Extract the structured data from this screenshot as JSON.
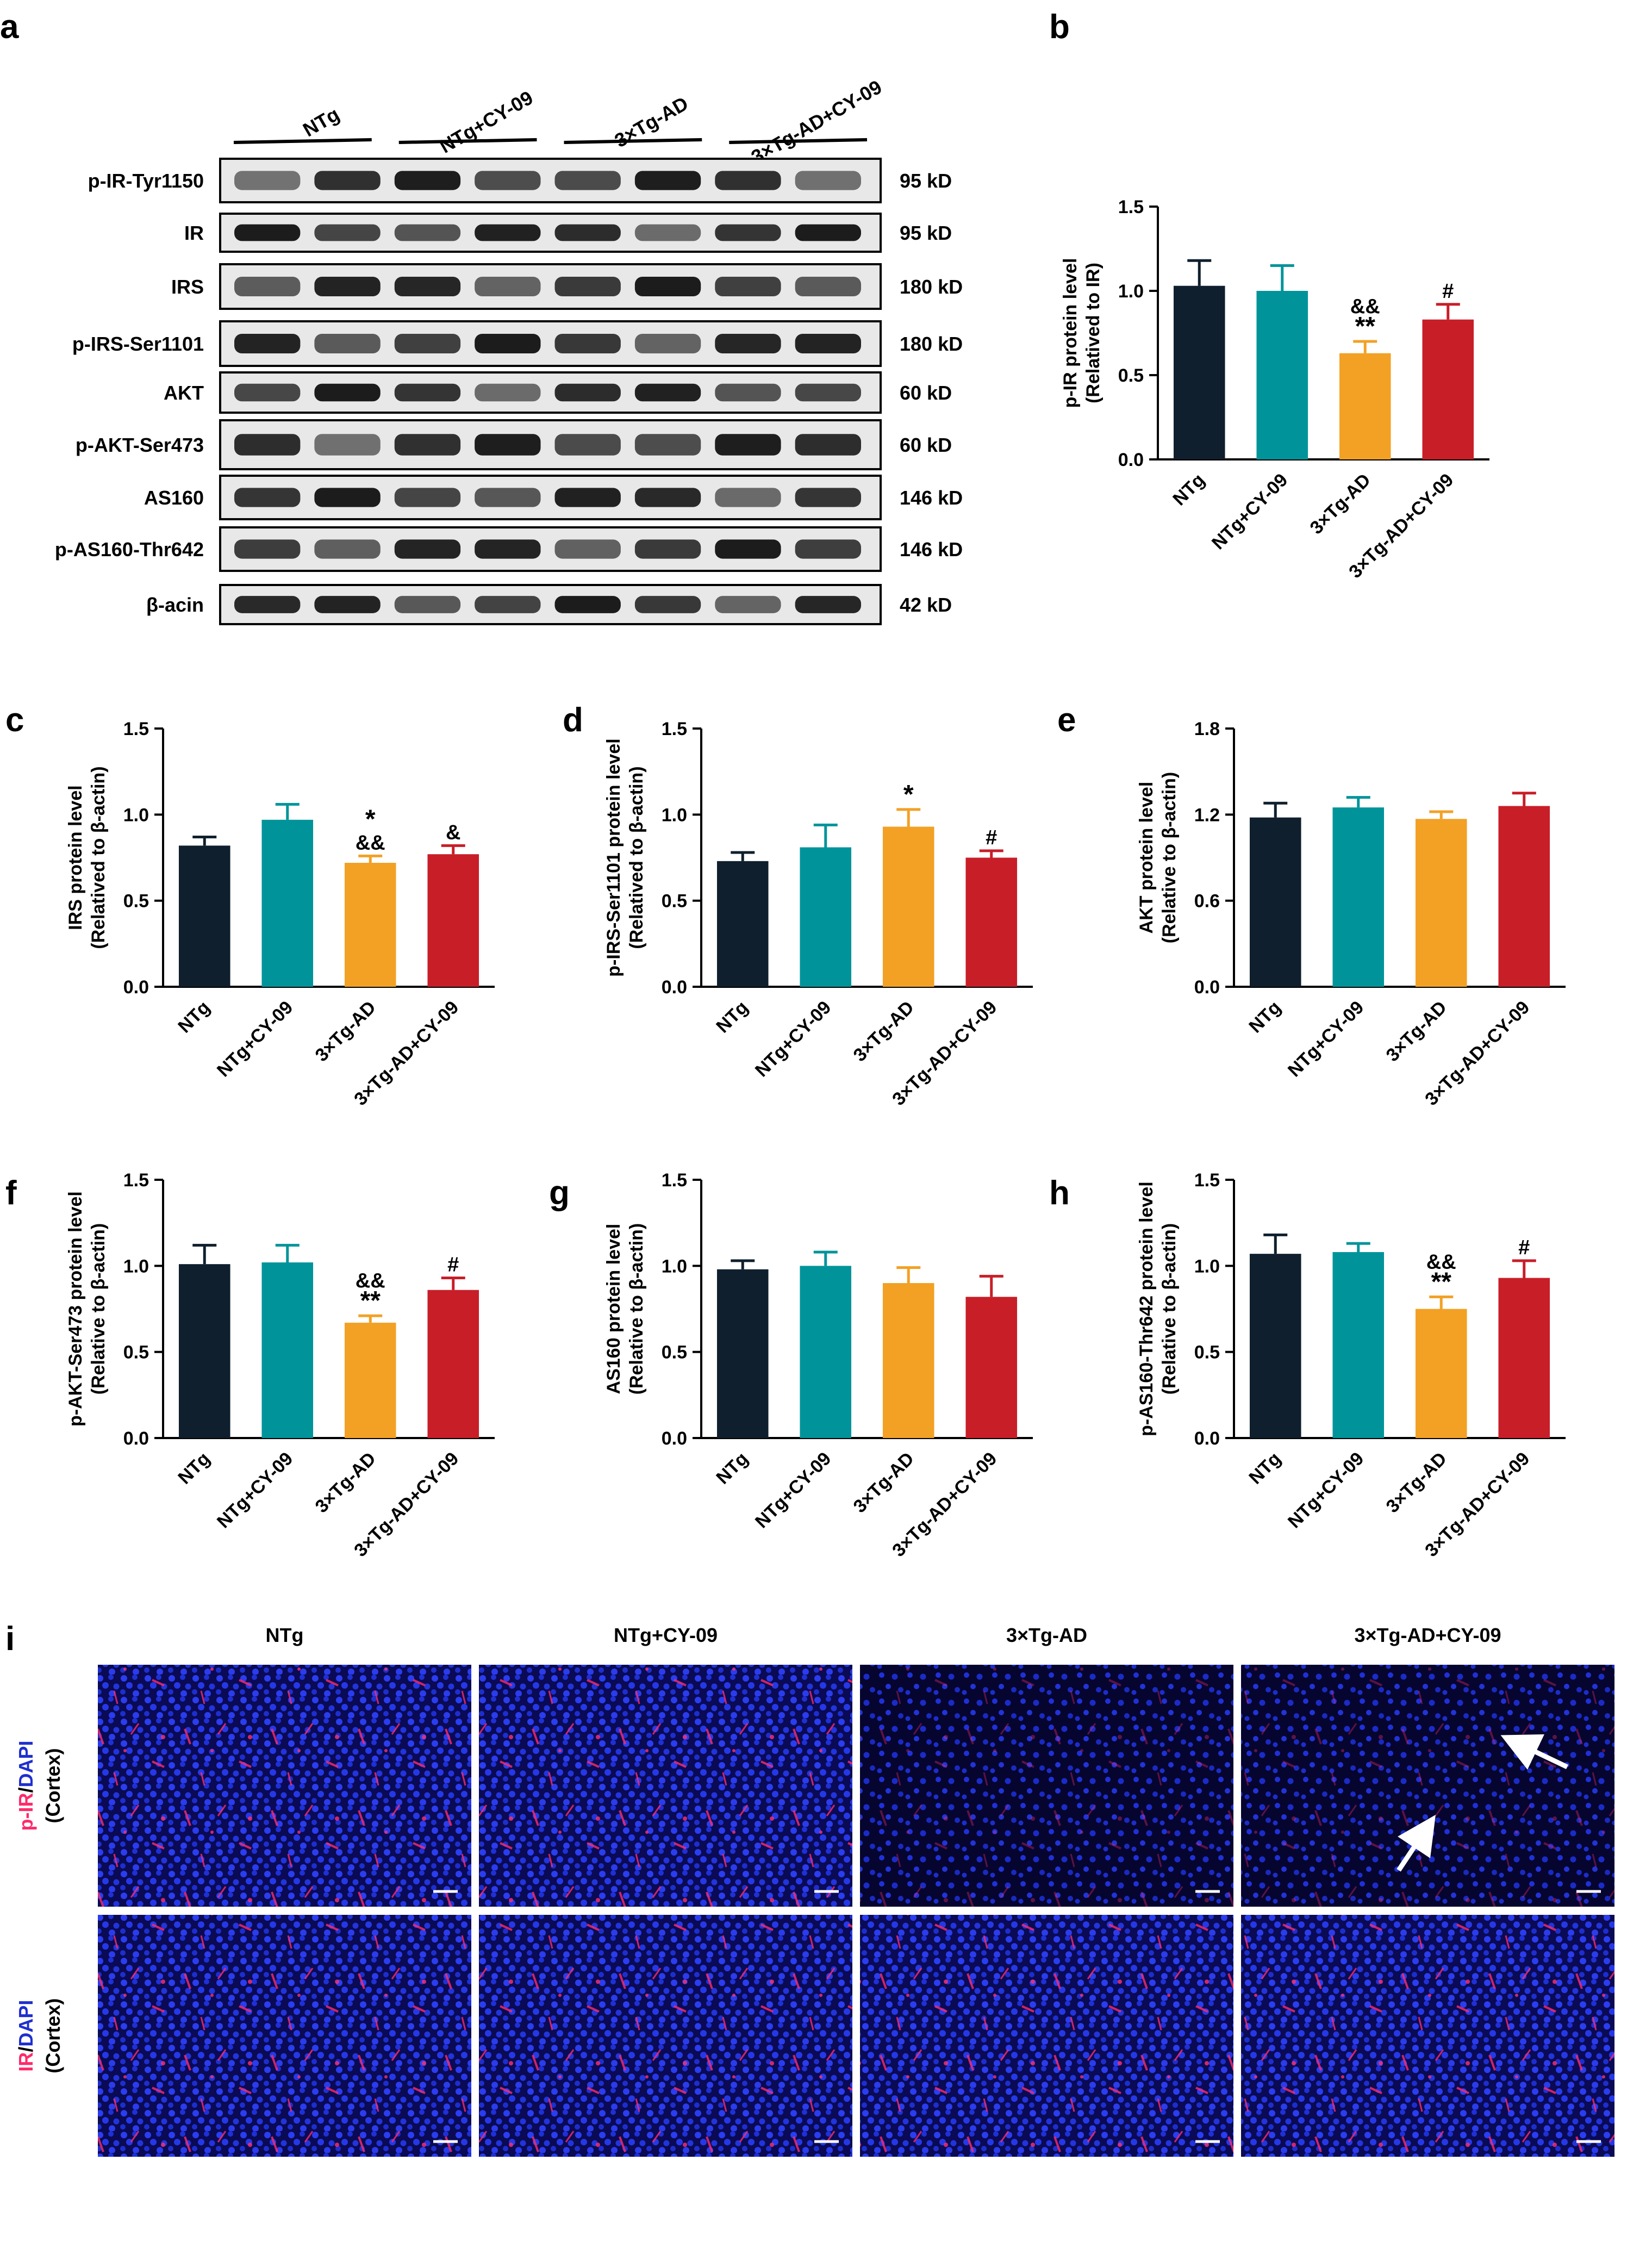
{
  "groups": [
    "NTg",
    "NTg+CY-09",
    "3×Tg-AD",
    "3×Tg-AD+CY-09"
  ],
  "colors": {
    "NTg": "#0f1f2d",
    "NTg+CY-09": "#00949a",
    "3×Tg-AD": "#f2a125",
    "3×Tg-AD+CY-09": "#c81e28",
    "dapi": "#1f2fd0",
    "marker": "#ff2a6a"
  },
  "panel_letters": {
    "a": "a",
    "b": "b",
    "c": "c",
    "d": "d",
    "e": "e",
    "f": "f",
    "g": "g",
    "h": "h",
    "i": "i"
  },
  "western_blot": {
    "rows": [
      {
        "label": "p-IR-Tyr1150",
        "kd": "95 kD"
      },
      {
        "label": "IR",
        "kd": "95 kD"
      },
      {
        "label": "IRS",
        "kd": "180 kD"
      },
      {
        "label": "p-IRS-Ser1101",
        "kd": "180 kD"
      },
      {
        "label": "AKT",
        "kd": "60 kD"
      },
      {
        "label": "p-AKT-Ser473",
        "kd": "60 kD"
      },
      {
        "label": "AS160",
        "kd": "146 kD"
      },
      {
        "label": "p-AS160-Thr642",
        "kd": "146 kD"
      },
      {
        "label": "β-acin",
        "kd": "42 kD"
      }
    ]
  },
  "chart_data": [
    {
      "id": "b",
      "type": "bar",
      "categories": [
        "NTg",
        "NTg+CY-09",
        "3×Tg-AD",
        "3×Tg-AD+CY-09"
      ],
      "values": [
        1.03,
        1.0,
        0.63,
        0.83
      ],
      "errors": [
        0.15,
        0.15,
        0.07,
        0.09
      ],
      "annotations": [
        "",
        "",
        "&&\n**",
        "#"
      ],
      "ylabel_line1": "p-IR protein level",
      "ylabel_line2": "(Relatived to IR)",
      "ylim": [
        0,
        1.5
      ],
      "yticks": [
        "0.0",
        "0.5",
        "1.0",
        "1.5"
      ],
      "ytick_values": [
        0,
        0.5,
        1.0,
        1.5
      ]
    },
    {
      "id": "c",
      "type": "bar",
      "categories": [
        "NTg",
        "NTg+CY-09",
        "3×Tg-AD",
        "3×Tg-AD+CY-09"
      ],
      "values": [
        0.82,
        0.97,
        0.72,
        0.77
      ],
      "errors": [
        0.05,
        0.09,
        0.04,
        0.05
      ],
      "annotations": [
        "",
        "",
        "*\n&&",
        "&"
      ],
      "ylabel_line1": "IRS protein level",
      "ylabel_line2": "(Relatived to β-actin)",
      "ylim": [
        0,
        1.5
      ],
      "yticks": [
        "0.0",
        "0.5",
        "1.0",
        "1.5"
      ],
      "ytick_values": [
        0,
        0.5,
        1.0,
        1.5
      ]
    },
    {
      "id": "d",
      "type": "bar",
      "categories": [
        "NTg",
        "NTg+CY-09",
        "3×Tg-AD",
        "3×Tg-AD+CY-09"
      ],
      "values": [
        0.73,
        0.81,
        0.93,
        0.75
      ],
      "errors": [
        0.05,
        0.13,
        0.1,
        0.04
      ],
      "annotations": [
        "",
        "",
        "*",
        "#"
      ],
      "ylabel_line1": "p-IRS-Ser1101 protein level",
      "ylabel_line2": "(Relatived to β-actin)",
      "ylim": [
        0,
        1.5
      ],
      "yticks": [
        "0.0",
        "0.5",
        "1.0",
        "1.5"
      ],
      "ytick_values": [
        0,
        0.5,
        1.0,
        1.5
      ]
    },
    {
      "id": "e",
      "type": "bar",
      "categories": [
        "NTg",
        "NTg+CY-09",
        "3×Tg-AD",
        "3×Tg-AD+CY-09"
      ],
      "values": [
        1.18,
        1.25,
        1.17,
        1.26
      ],
      "errors": [
        0.1,
        0.07,
        0.05,
        0.09
      ],
      "annotations": [
        "",
        "",
        "",
        ""
      ],
      "ylabel_line1": "AKT protein level",
      "ylabel_line2": "(Relative to β-actin)",
      "ylim": [
        0,
        1.8
      ],
      "yticks": [
        "0.0",
        "0.6",
        "1.2",
        "1.8"
      ],
      "ytick_values": [
        0,
        0.6,
        1.2,
        1.8
      ]
    },
    {
      "id": "f",
      "type": "bar",
      "categories": [
        "NTg",
        "NTg+CY-09",
        "3×Tg-AD",
        "3×Tg-AD+CY-09"
      ],
      "values": [
        1.01,
        1.02,
        0.67,
        0.86
      ],
      "errors": [
        0.11,
        0.1,
        0.04,
        0.07
      ],
      "annotations": [
        "",
        "",
        "&&\n**",
        "#"
      ],
      "ylabel_line1": "p-AKT-Ser473 protein level",
      "ylabel_line2": "(Relative to β-actin)",
      "ylim": [
        0,
        1.5
      ],
      "yticks": [
        "0.0",
        "0.5",
        "1.0",
        "1.5"
      ],
      "ytick_values": [
        0,
        0.5,
        1.0,
        1.5
      ]
    },
    {
      "id": "g",
      "type": "bar",
      "categories": [
        "NTg",
        "NTg+CY-09",
        "3×Tg-AD",
        "3×Tg-AD+CY-09"
      ],
      "values": [
        0.98,
        1.0,
        0.9,
        0.82
      ],
      "errors": [
        0.05,
        0.08,
        0.09,
        0.12
      ],
      "annotations": [
        "",
        "",
        "",
        ""
      ],
      "ylabel_line1": "AS160 protein level",
      "ylabel_line2": "(Relative to β-actin)",
      "ylim": [
        0,
        1.5
      ],
      "yticks": [
        "0.0",
        "0.5",
        "1.0",
        "1.5"
      ],
      "ytick_values": [
        0,
        0.5,
        1.0,
        1.5
      ]
    },
    {
      "id": "h",
      "type": "bar",
      "categories": [
        "NTg",
        "NTg+CY-09",
        "3×Tg-AD",
        "3×Tg-AD+CY-09"
      ],
      "values": [
        1.07,
        1.08,
        0.75,
        0.93
      ],
      "errors": [
        0.11,
        0.05,
        0.07,
        0.1
      ],
      "annotations": [
        "",
        "",
        "&&\n**",
        "#"
      ],
      "ylabel_line1": "p-AS160-Thr642 protein level",
      "ylabel_line2": "(Relative to β-actin)",
      "ylim": [
        0,
        1.5
      ],
      "yticks": [
        "0.0",
        "0.5",
        "1.0",
        "1.5"
      ],
      "ytick_values": [
        0,
        0.5,
        1.0,
        1.5
      ]
    }
  ],
  "microscopy": {
    "row_labels": [
      {
        "marker": "p-IR",
        "slash": "/",
        "dapi": "DAPI",
        "region": "(Cortex)"
      },
      {
        "marker": "IR",
        "slash": "/",
        "dapi": "DAPI",
        "region": "(Cortex)"
      }
    ]
  }
}
